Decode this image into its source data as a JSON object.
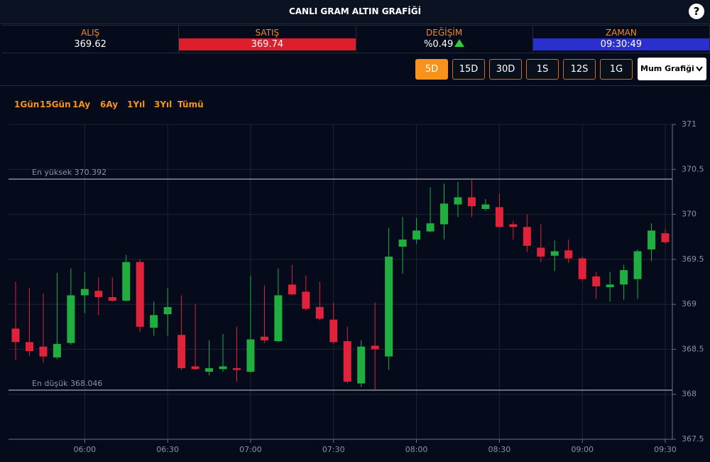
{
  "header": {
    "title": "CANLI GRAM ALTIN GRAFİĞİ",
    "help": "?"
  },
  "quotes": [
    {
      "label": "ALIŞ",
      "value": "369.62"
    },
    {
      "label": "SATIŞ",
      "value": "369.74",
      "value_bg": "#dd1f2d"
    },
    {
      "label": "DEĞİŞİM",
      "value": "%0.49",
      "trend": "up"
    },
    {
      "label": "ZAMAN",
      "value": "09:30:49",
      "value_bg": "#2a30d0"
    }
  ],
  "period_buttons": [
    {
      "label": "5D",
      "active": true
    },
    {
      "label": "15D",
      "active": false
    },
    {
      "label": "30D",
      "active": false
    },
    {
      "label": "1S",
      "active": false
    },
    {
      "label": "12S",
      "active": false
    },
    {
      "label": "1G",
      "active": false
    }
  ],
  "chart_style": "Mum Grafiği",
  "ranges": [
    "1Gün",
    "15Gün",
    "1Ay",
    "6Ay",
    "1Yıl",
    "3Yıl",
    "Tümü"
  ],
  "chart_data": {
    "type": "candlestick",
    "x": [
      "05:35",
      "05:40",
      "05:45",
      "05:50",
      "05:55",
      "06:00",
      "06:05",
      "06:10",
      "06:15",
      "06:20",
      "06:25",
      "06:30",
      "06:35",
      "06:40",
      "06:45",
      "06:50",
      "06:55",
      "07:00",
      "07:05",
      "07:10",
      "07:15",
      "07:20",
      "07:25",
      "07:30",
      "07:35",
      "07:40",
      "07:45",
      "07:50",
      "07:55",
      "08:00",
      "08:05",
      "08:10",
      "08:15",
      "08:20",
      "08:25",
      "08:30",
      "08:35",
      "08:40",
      "08:45",
      "08:50",
      "08:55",
      "09:00",
      "09:05",
      "09:10",
      "09:15",
      "09:20",
      "09:25",
      "09:30"
    ],
    "open": [
      368.73,
      368.58,
      368.53,
      368.41,
      368.57,
      369.1,
      369.15,
      369.08,
      369.04,
      369.47,
      368.74,
      368.89,
      368.66,
      368.31,
      368.25,
      368.28,
      368.29,
      368.25,
      368.64,
      368.59,
      369.22,
      369.14,
      368.97,
      368.83,
      368.59,
      368.12,
      368.54,
      368.42,
      369.64,
      369.72,
      369.81,
      369.89,
      370.11,
      370.19,
      370.06,
      370.08,
      369.89,
      369.86,
      369.63,
      369.54,
      369.6,
      369.51,
      369.31,
      369.19,
      369.22,
      369.28,
      369.61,
      369.79
    ],
    "high": [
      369.25,
      369.18,
      369.12,
      369.35,
      369.4,
      369.36,
      369.3,
      369.3,
      369.55,
      369.5,
      369.03,
      369.18,
      369.1,
      369.0,
      368.6,
      368.67,
      368.75,
      369.32,
      369.21,
      369.4,
      369.44,
      369.32,
      369.25,
      369.02,
      368.75,
      368.6,
      369.02,
      369.85,
      369.97,
      369.96,
      370.3,
      370.34,
      370.36,
      370.38,
      370.17,
      370.23,
      369.93,
      370.0,
      369.89,
      369.71,
      369.72,
      369.53,
      369.36,
      369.36,
      369.44,
      369.61,
      369.9,
      369.84
    ],
    "low": [
      368.38,
      368.43,
      368.35,
      368.39,
      368.55,
      368.9,
      368.88,
      369.03,
      369.03,
      368.69,
      368.65,
      368.65,
      368.27,
      368.27,
      368.21,
      368.25,
      368.14,
      368.24,
      368.57,
      368.58,
      369.1,
      368.93,
      368.82,
      368.56,
      368.12,
      368.08,
      368.05,
      368.27,
      369.34,
      369.67,
      369.8,
      369.72,
      369.97,
      369.97,
      370.04,
      369.85,
      369.72,
      369.58,
      369.47,
      369.37,
      369.46,
      369.26,
      369.06,
      369.03,
      369.05,
      369.06,
      369.48,
      369.67
    ],
    "close": [
      368.58,
      368.48,
      368.42,
      368.56,
      369.1,
      369.17,
      369.08,
      369.04,
      369.47,
      368.75,
      368.88,
      368.97,
      368.29,
      368.28,
      368.29,
      368.31,
      368.27,
      368.61,
      368.6,
      369.1,
      369.11,
      368.95,
      368.84,
      368.58,
      368.14,
      368.53,
      368.5,
      369.53,
      369.72,
      369.82,
      369.9,
      370.12,
      370.19,
      370.09,
      370.11,
      369.86,
      369.86,
      369.65,
      369.53,
      369.59,
      369.51,
      369.28,
      369.2,
      369.22,
      369.38,
      369.59,
      369.82,
      369.69
    ],
    "up_color": "#1fae3f",
    "down_color": "#e0233a",
    "xticks": [
      "06:00",
      "06:30",
      "07:00",
      "07:30",
      "08:00",
      "08:30",
      "09:00",
      "09:30"
    ],
    "ylim": [
      367.5,
      371
    ],
    "yticks": [
      371,
      370.5,
      370,
      369.5,
      369,
      368.5,
      368,
      367.5
    ],
    "grid": true,
    "annotations": [
      {
        "label": "En yüksek 370.392",
        "value": 370.392
      },
      {
        "label": "En düşük 368.046",
        "value": 368.046
      }
    ]
  }
}
